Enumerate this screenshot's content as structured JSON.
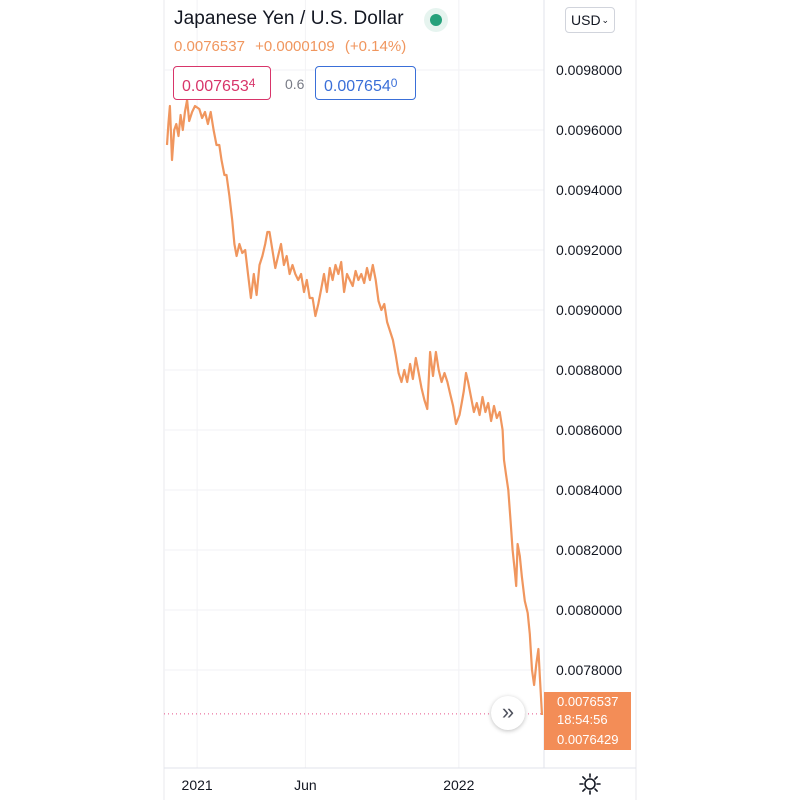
{
  "header": {
    "title": "Japanese Yen / U.S. Dollar",
    "last_price": "0.0076537",
    "change_abs": "+0.0000109",
    "change_pct": "(+0.14%)",
    "status_color": "#26a17b"
  },
  "quotes": {
    "sell_main": "0.007653",
    "sell_sup": "4",
    "spread": "0.6",
    "buy_main": "0.007654",
    "buy_sup": "0"
  },
  "currency": {
    "label": "USD",
    "icon": "chevron-down-icon"
  },
  "price_tag": {
    "price": "0.0076537",
    "countdown": "18:54:56",
    "low": "0.0076429"
  },
  "colors": {
    "line": "#f0965e",
    "sell": "#d8356a",
    "buy": "#3a6fd8",
    "tag": "#f38d57"
  },
  "chart_data": {
    "type": "line",
    "title": "Japanese Yen / U.S. Dollar",
    "xlabel": "",
    "ylabel": "",
    "x_ticks": [
      {
        "label": "2021",
        "date": "2021-01-01"
      },
      {
        "label": "Jun",
        "date": "2021-06-01"
      },
      {
        "label": "2022",
        "date": "2022-01-01"
      }
    ],
    "y_ticks": [
      "0.0098000",
      "0.0096000",
      "0.0094000",
      "0.0092000",
      "0.0090000",
      "0.0088000",
      "0.0086000",
      "0.0084000",
      "0.0082000",
      "0.0080000",
      "0.0078000"
    ],
    "ylim": [
      0.00764,
      0.00984
    ],
    "xlim": [
      "2020-11-20",
      "2022-04-27"
    ],
    "grid": true,
    "series": [
      {
        "values": [
          [
            "2020-11-20",
            0.00955
          ],
          [
            "2020-11-22",
            0.00962
          ],
          [
            "2020-11-24",
            0.00968
          ],
          [
            "2020-11-27",
            0.0095
          ],
          [
            "2020-11-30",
            0.0096
          ],
          [
            "2020-12-03",
            0.00962
          ],
          [
            "2020-12-06",
            0.00958
          ],
          [
            "2020-12-09",
            0.00965
          ],
          [
            "2020-12-12",
            0.0096
          ],
          [
            "2020-12-15",
            0.00966
          ],
          [
            "2020-12-18",
            0.0097
          ],
          [
            "2020-12-21",
            0.00963
          ],
          [
            "2020-12-25",
            0.00966
          ],
          [
            "2020-12-29",
            0.00968
          ],
          [
            "2021-01-04",
            0.00967
          ],
          [
            "2021-01-08",
            0.00964
          ],
          [
            "2021-01-12",
            0.00966
          ],
          [
            "2021-01-16",
            0.00962
          ],
          [
            "2021-01-20",
            0.00966
          ],
          [
            "2021-01-24",
            0.0096
          ],
          [
            "2021-01-28",
            0.00955
          ],
          [
            "2021-02-01",
            0.00955
          ],
          [
            "2021-02-04",
            0.0095
          ],
          [
            "2021-02-08",
            0.00945
          ],
          [
            "2021-02-11",
            0.00945
          ],
          [
            "2021-02-15",
            0.00938
          ],
          [
            "2021-02-19",
            0.0093
          ],
          [
            "2021-02-22",
            0.00922
          ],
          [
            "2021-02-25",
            0.00918
          ],
          [
            "2021-03-01",
            0.00922
          ],
          [
            "2021-03-05",
            0.00919
          ],
          [
            "2021-03-09",
            0.0092
          ],
          [
            "2021-03-13",
            0.00912
          ],
          [
            "2021-03-17",
            0.00904
          ],
          [
            "2021-03-21",
            0.00912
          ],
          [
            "2021-03-25",
            0.00905
          ],
          [
            "2021-03-29",
            0.00915
          ],
          [
            "2021-04-02",
            0.00918
          ],
          [
            "2021-04-06",
            0.00922
          ],
          [
            "2021-04-09",
            0.00926
          ],
          [
            "2021-04-12",
            0.00926
          ],
          [
            "2021-04-16",
            0.0092
          ],
          [
            "2021-04-20",
            0.00914
          ],
          [
            "2021-04-24",
            0.00918
          ],
          [
            "2021-04-28",
            0.00922
          ],
          [
            "2021-05-02",
            0.00915
          ],
          [
            "2021-05-06",
            0.00918
          ],
          [
            "2021-05-10",
            0.00912
          ],
          [
            "2021-05-14",
            0.00915
          ],
          [
            "2021-05-18",
            0.00912
          ],
          [
            "2021-05-22",
            0.0091
          ],
          [
            "2021-05-26",
            0.00912
          ],
          [
            "2021-05-30",
            0.00906
          ],
          [
            "2021-06-03",
            0.0091
          ],
          [
            "2021-06-07",
            0.00904
          ],
          [
            "2021-06-11",
            0.00904
          ],
          [
            "2021-06-15",
            0.00898
          ],
          [
            "2021-06-19",
            0.00902
          ],
          [
            "2021-06-23",
            0.00907
          ],
          [
            "2021-06-27",
            0.00912
          ],
          [
            "2021-07-01",
            0.00906
          ],
          [
            "2021-07-05",
            0.00914
          ],
          [
            "2021-07-09",
            0.0091
          ],
          [
            "2021-07-13",
            0.00915
          ],
          [
            "2021-07-17",
            0.00912
          ],
          [
            "2021-07-21",
            0.00916
          ],
          [
            "2021-07-25",
            0.00906
          ],
          [
            "2021-07-29",
            0.00912
          ],
          [
            "2021-08-02",
            0.0091
          ],
          [
            "2021-08-06",
            0.00908
          ],
          [
            "2021-08-10",
            0.00913
          ],
          [
            "2021-08-14",
            0.0091
          ],
          [
            "2021-08-18",
            0.00912
          ],
          [
            "2021-08-22",
            0.00909
          ],
          [
            "2021-08-26",
            0.00914
          ],
          [
            "2021-08-30",
            0.0091
          ],
          [
            "2021-09-03",
            0.00915
          ],
          [
            "2021-09-07",
            0.0091
          ],
          [
            "2021-09-11",
            0.00903
          ],
          [
            "2021-09-15",
            0.009
          ],
          [
            "2021-09-19",
            0.00902
          ],
          [
            "2021-09-23",
            0.00896
          ],
          [
            "2021-09-27",
            0.00893
          ],
          [
            "2021-10-01",
            0.0089
          ],
          [
            "2021-10-05",
            0.00885
          ],
          [
            "2021-10-09",
            0.00879
          ],
          [
            "2021-10-13",
            0.00876
          ],
          [
            "2021-10-17",
            0.0088
          ],
          [
            "2021-10-21",
            0.00876
          ],
          [
            "2021-10-25",
            0.00882
          ],
          [
            "2021-10-29",
            0.00877
          ],
          [
            "2021-11-02",
            0.00884
          ],
          [
            "2021-11-06",
            0.00879
          ],
          [
            "2021-11-10",
            0.00874
          ],
          [
            "2021-11-14",
            0.0087
          ],
          [
            "2021-11-18",
            0.00867
          ],
          [
            "2021-11-22",
            0.00886
          ],
          [
            "2021-11-26",
            0.00878
          ],
          [
            "2021-11-30",
            0.00886
          ],
          [
            "2021-12-04",
            0.0088
          ],
          [
            "2021-12-08",
            0.00876
          ],
          [
            "2021-12-12",
            0.00879
          ],
          [
            "2021-12-16",
            0.00876
          ],
          [
            "2021-12-20",
            0.00872
          ],
          [
            "2021-12-24",
            0.00868
          ],
          [
            "2021-12-28",
            0.00862
          ],
          [
            "2022-01-02",
            0.00865
          ],
          [
            "2022-01-05",
            0.00869
          ],
          [
            "2022-01-08",
            0.00873
          ],
          [
            "2022-01-11",
            0.00879
          ],
          [
            "2022-01-14",
            0.00876
          ],
          [
            "2022-01-18",
            0.00871
          ],
          [
            "2022-01-22",
            0.00866
          ],
          [
            "2022-01-26",
            0.00869
          ],
          [
            "2022-01-30",
            0.00865
          ],
          [
            "2022-02-03",
            0.00871
          ],
          [
            "2022-02-07",
            0.00866
          ],
          [
            "2022-02-11",
            0.00869
          ],
          [
            "2022-02-15",
            0.00863
          ],
          [
            "2022-02-19",
            0.00868
          ],
          [
            "2022-02-23",
            0.00864
          ],
          [
            "2022-02-27",
            0.00866
          ],
          [
            "2022-03-03",
            0.0086
          ],
          [
            "2022-03-05",
            0.0085
          ],
          [
            "2022-03-08",
            0.00845
          ],
          [
            "2022-03-11",
            0.0084
          ],
          [
            "2022-03-14",
            0.0083
          ],
          [
            "2022-03-17",
            0.0082
          ],
          [
            "2022-03-20",
            0.00813
          ],
          [
            "2022-03-22",
            0.00808
          ],
          [
            "2022-03-24",
            0.00822
          ],
          [
            "2022-03-27",
            0.00818
          ],
          [
            "2022-03-30",
            0.00811
          ],
          [
            "2022-04-03",
            0.00803
          ],
          [
            "2022-04-07",
            0.00799
          ],
          [
            "2022-04-10",
            0.00792
          ],
          [
            "2022-04-13",
            0.0078
          ],
          [
            "2022-04-16",
            0.00775
          ],
          [
            "2022-04-19",
            0.00782
          ],
          [
            "2022-04-22",
            0.00787
          ],
          [
            "2022-04-24",
            0.00778
          ],
          [
            "2022-04-27",
            0.00765
          ]
        ]
      }
    ]
  }
}
